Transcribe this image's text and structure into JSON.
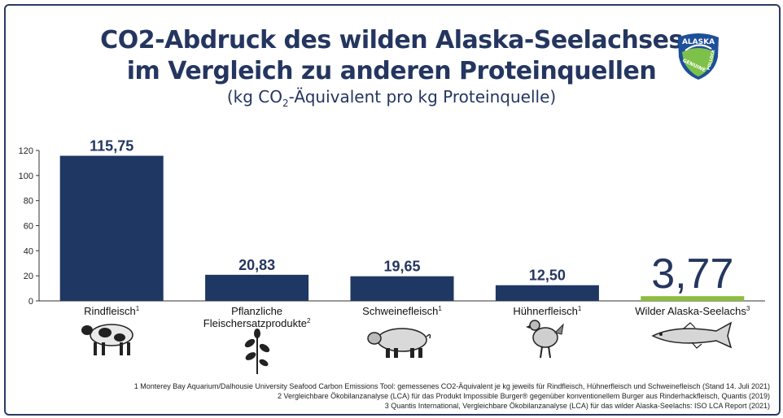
{
  "title_line1": "CO2-Abdruck des wilden Alaska-Seelachses",
  "title_line2": "im Vergleich zu anderen Proteinquellen",
  "subtitle_pre": "(kg CO",
  "subtitle_sub": "2",
  "subtitle_post": "-Äquivalent pro kg Proteinquelle)",
  "logo_text": [
    "ALASKA",
    "GENUINE",
    "POLLOCK"
  ],
  "colors": {
    "bar": "#1f3763",
    "highlight": "#8cbd3f",
    "text": "#243660"
  },
  "footnotes": [
    "1 Monterey Bay Aquarium/Dalhousie University Seafood Carbon Emissions Tool: gemessenes CO2-Äquivalent je kg jeweils für Rindfleisch, Hühnerfleisch und Schweinefleisch (Stand 14. Juli 2021)",
    "2 Vergleichbare Ökobilanzanalyse (LCA) für das Produkt Impossible Burger® gegenüber konventionellem Burger aus Rinderhackfleisch, Quantis (2019)",
    "3 Quantis International, Vergleichbare Ökobilanzanalyse (LCA) für das wilder Alaska-Seelachs: ISO LCA Report (2021)"
  ],
  "chart_data": {
    "type": "bar",
    "categories": [
      "Rindfleisch",
      "Pflanzliche Fleischersatzprodukte",
      "Schweinefleisch",
      "Hühnerfleisch",
      "Wilder Alaska-Seelachs"
    ],
    "category_lines": [
      [
        "Rindfleisch"
      ],
      [
        "Pflanzliche",
        "Fleischersatzprodukte"
      ],
      [
        "Schweinefleisch"
      ],
      [
        "Hühnerfleisch"
      ],
      [
        "Wilder Alaska-Seelachs"
      ]
    ],
    "footnote_marks": [
      "1",
      "2",
      "1",
      "1",
      "3"
    ],
    "values": [
      115.75,
      20.83,
      19.65,
      12.5,
      3.77
    ],
    "value_labels": [
      "115,75",
      "20,83",
      "19,65",
      "12,50",
      "3,77"
    ],
    "icons": [
      "cow-icon",
      "plant-icon",
      "pig-icon",
      "chicken-icon",
      "fish-icon"
    ],
    "highlight_index": 4,
    "ylim": [
      0,
      120
    ],
    "yticks": [
      0,
      20,
      40,
      60,
      80,
      100,
      120
    ],
    "grid": false
  }
}
